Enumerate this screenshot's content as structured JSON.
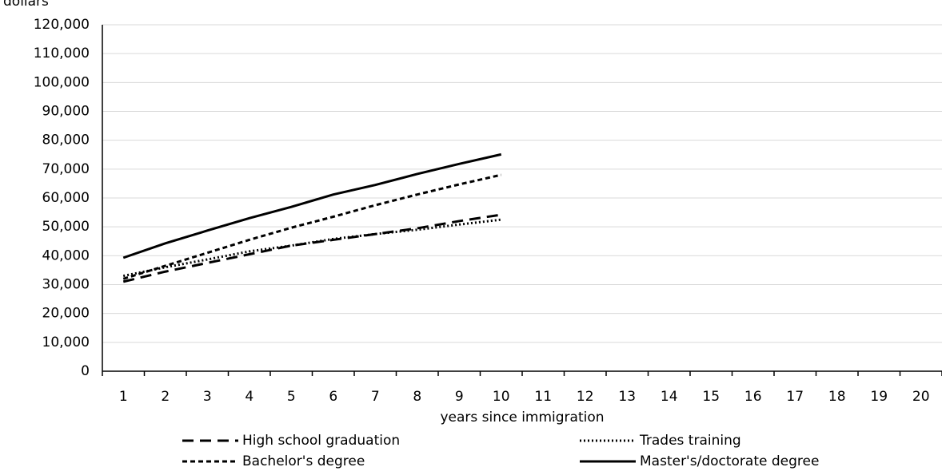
{
  "chart_data": {
    "type": "line",
    "y_label": "dollars",
    "x_label": "years since immigration",
    "categories": [
      "1",
      "2",
      "3",
      "4",
      "5",
      "6",
      "7",
      "8",
      "9",
      "10",
      "11",
      "12",
      "13",
      "14",
      "15",
      "16",
      "17",
      "18",
      "19",
      "20"
    ],
    "series": [
      {
        "name": "High school graduation",
        "color": "#000000",
        "dash": "14,8",
        "values": [
          31000,
          34500,
          37500,
          40500,
          43500,
          45500,
          47500,
          49500,
          52000,
          54200,
          null,
          null,
          null,
          null,
          null,
          null,
          null,
          null,
          null,
          null
        ]
      },
      {
        "name": "Trades training",
        "color": "#000000",
        "dash": "2,3",
        "values": [
          33000,
          36000,
          38700,
          41500,
          43500,
          45800,
          47500,
          49000,
          50800,
          52500,
          null,
          null,
          null,
          null,
          null,
          null,
          null,
          null,
          null,
          null
        ]
      },
      {
        "name": "Bachelor's degree",
        "color": "#000000",
        "dash": "6,4",
        "values": [
          32000,
          36500,
          41000,
          45500,
          49700,
          53500,
          57500,
          61200,
          64700,
          68000,
          null,
          null,
          null,
          null,
          null,
          null,
          null,
          null,
          null,
          null
        ]
      },
      {
        "name": "Master's/doctorate degree",
        "color": "#000000",
        "dash": "none",
        "values": [
          39300,
          44300,
          48700,
          53000,
          56900,
          61200,
          64500,
          68300,
          71800,
          75100,
          null,
          null,
          null,
          null,
          null,
          null,
          null,
          null,
          null,
          null
        ]
      }
    ],
    "ylim": [
      0,
      120000
    ],
    "yticks": [
      0,
      {
        "value": 10000,
        "label": "10,000"
      },
      {
        "value": 20000,
        "label": "20,000"
      },
      {
        "value": 30000,
        "label": "30,000"
      },
      {
        "value": 40000,
        "label": "40,000"
      },
      {
        "value": 50000,
        "label": "50,000"
      },
      {
        "value": 60000,
        "label": "60,000"
      },
      {
        "value": 70000,
        "label": "70,000"
      },
      {
        "value": 80000,
        "label": "80,000"
      },
      {
        "value": 90000,
        "label": "90,000"
      },
      {
        "value": 100000,
        "label": "100,000"
      },
      {
        "value": 110000,
        "label": "110,000"
      },
      {
        "value": 120000,
        "label": "120,000"
      }
    ],
    "grid": true,
    "legend": "bottom"
  }
}
